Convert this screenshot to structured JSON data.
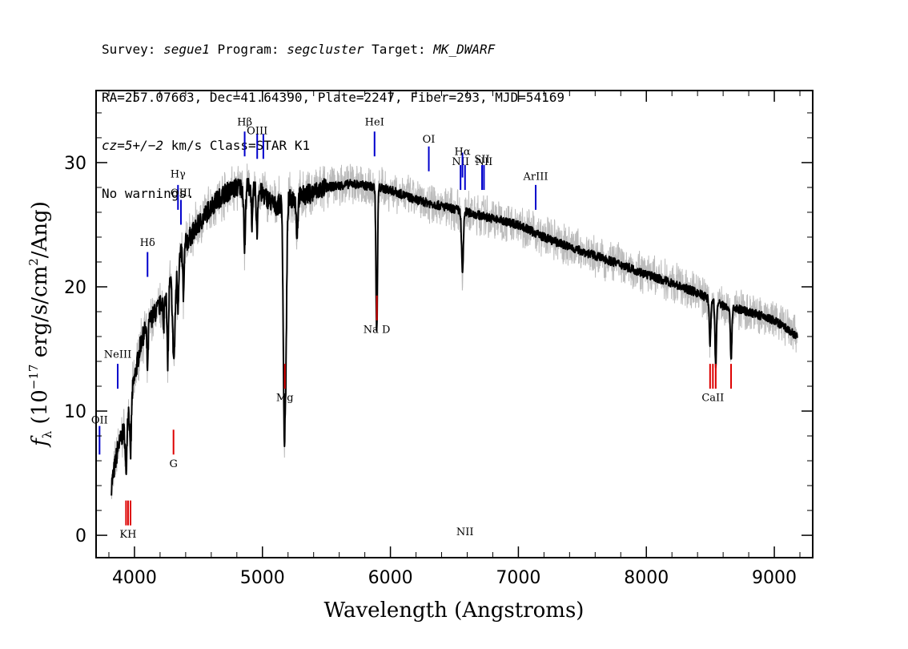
{
  "header": {
    "line1": {
      "survey_label": "Survey: ",
      "survey": "segue1",
      "program_label": " Program: ",
      "program": "segcluster",
      "target_label": " Target: ",
      "target": "MK_DWARF"
    },
    "line2": "RA=257.07663, Dec=41.64390, Plate=2247, Fiber=293, MJD=54169",
    "line3": {
      "cz": "cz=5+/−2",
      "rest": " km/s Class=STAR K1"
    },
    "line4": "No warnings."
  },
  "chart_data": {
    "type": "line",
    "xlabel": "Wavelength (Angstroms)",
    "ylabel": "f_λ (10^-17 erg/s/cm^2/Ang)",
    "ylabel_parts": {
      "f": "f",
      "lambda": "λ",
      "p1": " (10",
      "e1": "−17",
      "p2": " erg/s/cm",
      "e2": "2",
      "p3": "/Ang)"
    },
    "xlim": [
      3700,
      9300
    ],
    "ylim": [
      -1.8,
      35.8
    ],
    "xticks": [
      4000,
      5000,
      6000,
      7000,
      8000,
      9000
    ],
    "yticks": [
      0,
      10,
      20,
      30
    ],
    "colors": {
      "spectrum": "#000000",
      "error": "#bbbbbb",
      "emission": "#0000cc",
      "absorption": "#dd0000"
    },
    "spectrum_anchors": {
      "x": [
        3820,
        3870,
        3920,
        3990,
        4050,
        4100,
        4200,
        4300,
        4400,
        4500,
        4600,
        4700,
        4800,
        4900,
        5000,
        5100,
        5200,
        5300,
        5400,
        5500,
        5700,
        5900,
        6000,
        6200,
        6400,
        6600,
        6800,
        7000,
        7200,
        7400,
        7600,
        7800,
        8000,
        8200,
        8400,
        8600,
        8800,
        9000,
        9180
      ],
      "y": [
        4.0,
        7.0,
        8.5,
        12.0,
        15.5,
        17.0,
        18.5,
        21.0,
        23.5,
        25.0,
        26.5,
        27.5,
        28.0,
        28.0,
        27.5,
        26.5,
        27.0,
        27.3,
        27.6,
        28.0,
        28.3,
        28.0,
        27.8,
        27.0,
        26.5,
        26.0,
        25.5,
        25.0,
        24.0,
        23.2,
        22.5,
        21.8,
        21.0,
        20.3,
        19.5,
        18.5,
        18.0,
        17.3,
        16.0
      ]
    },
    "absorption_features": [
      {
        "x": 3934,
        "depth": 4.0,
        "width": 6
      },
      {
        "x": 3969,
        "depth": 4.5,
        "width": 6
      },
      {
        "x": 4102,
        "depth": 3.5,
        "width": 5
      },
      {
        "x": 4227,
        "depth": 3.0,
        "width": 4
      },
      {
        "x": 4260,
        "depth": 6.0,
        "width": 6
      },
      {
        "x": 4308,
        "depth": 7.0,
        "width": 10
      },
      {
        "x": 4340,
        "depth": 3.5,
        "width": 5
      },
      {
        "x": 4383,
        "depth": 4.0,
        "width": 5
      },
      {
        "x": 4861,
        "depth": 5.0,
        "width": 6
      },
      {
        "x": 4920,
        "depth": 3.0,
        "width": 5
      },
      {
        "x": 4957,
        "depth": 3.5,
        "width": 5
      },
      {
        "x": 5167,
        "depth": 9.0,
        "width": 7
      },
      {
        "x": 5173,
        "depth": 10.0,
        "width": 7
      },
      {
        "x": 5184,
        "depth": 10.0,
        "width": 7
      },
      {
        "x": 5270,
        "depth": 3.0,
        "width": 6
      },
      {
        "x": 5890,
        "depth": 7.0,
        "width": 5
      },
      {
        "x": 5896,
        "depth": 7.0,
        "width": 5
      },
      {
        "x": 6563,
        "depth": 5.0,
        "width": 7
      },
      {
        "x": 8498,
        "depth": 3.5,
        "width": 6
      },
      {
        "x": 8542,
        "depth": 5.0,
        "width": 6
      },
      {
        "x": 8662,
        "depth": 4.0,
        "width": 6
      }
    ],
    "emission_lines": [
      {
        "label": "OII",
        "x": 3727,
        "y_bottom": 6.5,
        "y_top": 8.8,
        "label_y": 9.0
      },
      {
        "label": "NeIII",
        "x": 3869,
        "y_bottom": 11.8,
        "y_top": 13.8,
        "label_y": 14.3
      },
      {
        "label": "Hδ",
        "x": 4102,
        "y_bottom": 20.8,
        "y_top": 22.8,
        "label_y": 23.3
      },
      {
        "label": "Hγ",
        "x": 4340,
        "y_bottom": 26.2,
        "y_top": 28.2,
        "label_y": 28.8
      },
      {
        "label": "OIII",
        "x": 4363,
        "y_bottom": 25.0,
        "y_top": 27.0,
        "label_y": 27.3
      },
      {
        "label": "Hβ",
        "x": 4861,
        "y_bottom": 30.5,
        "y_top": 32.5,
        "label_y": 33.0
      },
      {
        "label": "OIII",
        "x": 4959,
        "y_bottom": 30.3,
        "y_top": 32.3,
        "label_y": 32.3
      },
      {
        "label": "",
        "x": 5007,
        "y_bottom": 30.3,
        "y_top": 32.3,
        "label_y": 0
      },
      {
        "label": "HeI",
        "x": 5876,
        "y_bottom": 30.5,
        "y_top": 32.5,
        "label_y": 33.0
      },
      {
        "label": "OI",
        "x": 6300,
        "y_bottom": 29.3,
        "y_top": 31.3,
        "label_y": 31.6
      },
      {
        "label": "NII",
        "x": 6548,
        "y_bottom": 27.8,
        "y_top": 29.8,
        "label_y": 29.8
      },
      {
        "label": "Hα",
        "x": 6563,
        "y_bottom": 28.8,
        "y_top": 30.8,
        "label_y": 30.6
      },
      {
        "label": "NII",
        "x": 6583,
        "y_bottom": 27.8,
        "y_top": 29.8,
        "label_y": 0
      },
      {
        "label": "SII",
        "x": 6716,
        "y_bottom": 27.8,
        "y_top": 29.8,
        "label_y": 30.0
      },
      {
        "label": "NII",
        "x": 6731,
        "y_bottom": 27.8,
        "y_top": 29.8,
        "label_y": 29.8
      },
      {
        "label": "ArIII",
        "x": 7135,
        "y_bottom": 26.2,
        "y_top": 28.2,
        "label_y": 28.6
      }
    ],
    "absorption_lines": [
      {
        "label": "",
        "x": 3934,
        "y_bottom": 0.8,
        "y_top": 2.8
      },
      {
        "label": "KH",
        "x": 3950,
        "y_bottom": 0.8,
        "y_top": 2.8,
        "label_y": -0.2
      },
      {
        "label": "",
        "x": 3969,
        "y_bottom": 0.8,
        "y_top": 2.8
      },
      {
        "label": "G",
        "x": 4305,
        "y_bottom": 6.5,
        "y_top": 8.5,
        "label_y": 5.5
      },
      {
        "label": "Mg",
        "x": 5175,
        "y_bottom": 11.8,
        "y_top": 13.8,
        "label_y": 10.8
      },
      {
        "label": "Na D",
        "x": 5894,
        "y_bottom": 17.3,
        "y_top": 19.3,
        "label_y": 16.3
      },
      {
        "label": "",
        "x": 8498,
        "y_bottom": 11.8,
        "y_top": 13.8
      },
      {
        "label": "CaII",
        "x": 8520,
        "y_bottom": 11.8,
        "y_top": 13.8,
        "label_y": 10.8
      },
      {
        "label": "",
        "x": 8542,
        "y_bottom": 11.8,
        "y_top": 13.8
      },
      {
        "label": "",
        "x": 8662,
        "y_bottom": 11.8,
        "y_top": 13.8
      }
    ]
  }
}
